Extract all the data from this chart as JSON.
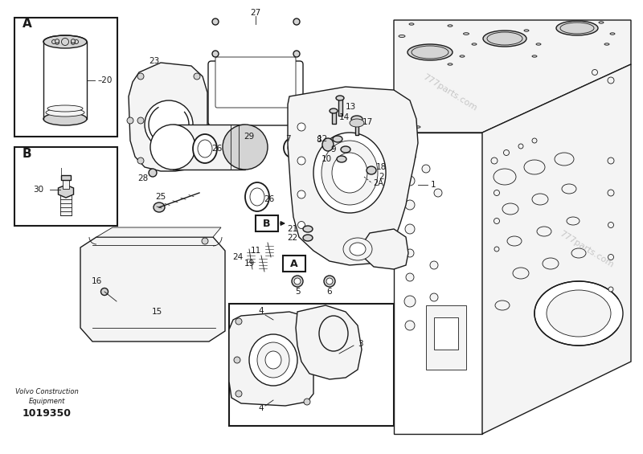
{
  "bg_color": "#ffffff",
  "lc": "#1a1a1a",
  "gray1": "#e8e8e8",
  "gray2": "#d4d4d4",
  "gray3": "#f4f4f4",
  "watermark": "777parts.com",
  "footer1": "Volvo Construction",
  "footer2": "Equipment",
  "footer3": "1019350",
  "figsize": [
    8.0,
    5.65
  ],
  "dpi": 100
}
